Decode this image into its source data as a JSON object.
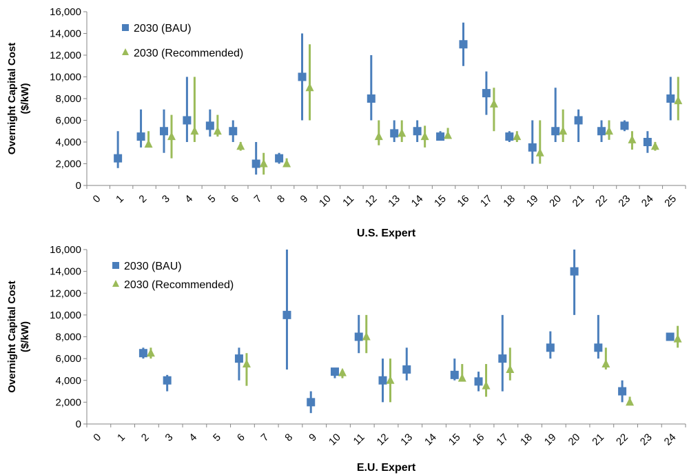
{
  "colors": {
    "bau": "#4a7ebb",
    "rec": "#9bbb59",
    "axis": "#868686"
  },
  "chart_data": [
    {
      "type": "scatter",
      "xlabel": "U.S. Expert",
      "ylabel_line1": "Overnight Capital Cost",
      "ylabel_line2": "($/kW)",
      "ylim": [
        0,
        16000
      ],
      "yticks": [
        "0",
        "2,000",
        "4,000",
        "6,000",
        "8,000",
        "10,000",
        "12,000",
        "14,000",
        "16,000"
      ],
      "xticks": [
        "0",
        "1",
        "2",
        "3",
        "4",
        "5",
        "6",
        "7",
        "8",
        "9",
        "10",
        "11",
        "12",
        "13",
        "14",
        "15",
        "16",
        "17",
        "18",
        "19",
        "20",
        "21",
        "22",
        "23",
        "24",
        "25"
      ],
      "legend": [
        "2030 (BAU)",
        "2030 (Recommended)"
      ],
      "series": [
        {
          "name": "2030 (BAU)",
          "marker": "square",
          "points": [
            {
              "x": 1,
              "y": 2500,
              "low": 1600,
              "high": 5000
            },
            {
              "x": 2,
              "y": 4500,
              "low": 3500,
              "high": 7000
            },
            {
              "x": 3,
              "y": 5000,
              "low": 3000,
              "high": 7000
            },
            {
              "x": 4,
              "y": 6000,
              "low": 4000,
              "high": 10000
            },
            {
              "x": 5,
              "y": 5500,
              "low": 4500,
              "high": 7000
            },
            {
              "x": 6,
              "y": 5000,
              "low": 4000,
              "high": 6000
            },
            {
              "x": 7,
              "y": 2000,
              "low": 1000,
              "high": 4000
            },
            {
              "x": 8,
              "y": 2500,
              "low": 2000,
              "high": 3000
            },
            {
              "x": 9,
              "y": 10000,
              "low": 6000,
              "high": 14000
            },
            {
              "x": 12,
              "y": 8000,
              "low": 6000,
              "high": 12000
            },
            {
              "x": 13,
              "y": 4800,
              "low": 4000,
              "high": 6000
            },
            {
              "x": 14,
              "y": 5000,
              "low": 4000,
              "high": 6000
            },
            {
              "x": 15,
              "y": 4500,
              "low": 4200,
              "high": 5000
            },
            {
              "x": 16,
              "y": 13000,
              "low": 11000,
              "high": 15000
            },
            {
              "x": 17,
              "y": 8500,
              "low": 6500,
              "high": 10500
            },
            {
              "x": 18,
              "y": 4500,
              "low": 4000,
              "high": 5000
            },
            {
              "x": 19,
              "y": 3500,
              "low": 2000,
              "high": 6000
            },
            {
              "x": 20,
              "y": 5000,
              "low": 4000,
              "high": 9000
            },
            {
              "x": 21,
              "y": 6000,
              "low": 4000,
              "high": 7000
            },
            {
              "x": 22,
              "y": 5000,
              "low": 4000,
              "high": 6000
            },
            {
              "x": 23,
              "y": 5500,
              "low": 5000,
              "high": 6000
            },
            {
              "x": 24,
              "y": 4000,
              "low": 3000,
              "high": 5000
            },
            {
              "x": 25,
              "y": 8000,
              "low": 6000,
              "high": 10000
            }
          ]
        },
        {
          "name": "2030 (Recommended)",
          "marker": "triangle",
          "points": [
            {
              "x": 2,
              "y": 3800,
              "low": 3800,
              "high": 5000
            },
            {
              "x": 3,
              "y": 4500,
              "low": 2500,
              "high": 6500
            },
            {
              "x": 4,
              "y": 5000,
              "low": 4000,
              "high": 10000
            },
            {
              "x": 5,
              "y": 5000,
              "low": 4500,
              "high": 6500
            },
            {
              "x": 6,
              "y": 3600,
              "low": 3200,
              "high": 4000
            },
            {
              "x": 7,
              "y": 2000,
              "low": 1000,
              "high": 3000
            },
            {
              "x": 8,
              "y": 2000,
              "low": 1800,
              "high": 2500
            },
            {
              "x": 9,
              "y": 9000,
              "low": 6000,
              "high": 13000
            },
            {
              "x": 12,
              "y": 4500,
              "low": 3700,
              "high": 6000
            },
            {
              "x": 13,
              "y": 4800,
              "low": 4000,
              "high": 6000
            },
            {
              "x": 14,
              "y": 4500,
              "low": 3500,
              "high": 5500
            },
            {
              "x": 15,
              "y": 4600,
              "low": 4300,
              "high": 5300
            },
            {
              "x": 17,
              "y": 7500,
              "low": 5000,
              "high": 9000
            },
            {
              "x": 18,
              "y": 4500,
              "low": 4000,
              "high": 5000
            },
            {
              "x": 19,
              "y": 3000,
              "low": 2000,
              "high": 6000
            },
            {
              "x": 20,
              "y": 5000,
              "low": 4000,
              "high": 7000
            },
            {
              "x": 22,
              "y": 5000,
              "low": 4200,
              "high": 6000
            },
            {
              "x": 23,
              "y": 4200,
              "low": 3300,
              "high": 5000
            },
            {
              "x": 24,
              "y": 3600,
              "low": 3200,
              "high": 4000
            },
            {
              "x": 25,
              "y": 7800,
              "low": 6000,
              "high": 10000
            }
          ]
        }
      ]
    },
    {
      "type": "scatter",
      "xlabel": "E.U. Expert",
      "ylabel_line1": "Overnight Capital Cost",
      "ylabel_line2": "($/kW)",
      "ylim": [
        0,
        16000
      ],
      "yticks": [
        "0",
        "2,000",
        "4,000",
        "6,000",
        "8,000",
        "10,000",
        "12,000",
        "14,000",
        "16,000"
      ],
      "xticks": [
        "0",
        "1",
        "2",
        "3",
        "4",
        "5",
        "6",
        "7",
        "8",
        "9",
        "10",
        "11",
        "12",
        "13",
        "14",
        "15",
        "16",
        "17",
        "18",
        "19",
        "20",
        "21",
        "22",
        "23",
        "24"
      ],
      "legend": [
        "2030 (BAU)",
        "2030 (Recommended)"
      ],
      "series": [
        {
          "name": "2030 (BAU)",
          "marker": "square",
          "points": [
            {
              "x": 2,
              "y": 6500,
              "low": 6000,
              "high": 7000
            },
            {
              "x": 3,
              "y": 4000,
              "low": 3000,
              "high": 4500
            },
            {
              "x": 6,
              "y": 6000,
              "low": 4000,
              "high": 7000
            },
            {
              "x": 8,
              "y": 10000,
              "low": 5000,
              "high": 16000
            },
            {
              "x": 9,
              "y": 2000,
              "low": 1000,
              "high": 3000
            },
            {
              "x": 10,
              "y": 4800,
              "low": 4200,
              "high": 5000
            },
            {
              "x": 11,
              "y": 8000,
              "low": 6500,
              "high": 10000
            },
            {
              "x": 12,
              "y": 4000,
              "low": 2000,
              "high": 6000
            },
            {
              "x": 13,
              "y": 5000,
              "low": 4000,
              "high": 7000
            },
            {
              "x": 15,
              "y": 4500,
              "low": 4000,
              "high": 6000
            },
            {
              "x": 16,
              "y": 3900,
              "low": 3000,
              "high": 4800
            },
            {
              "x": 17,
              "y": 6000,
              "low": 3000,
              "high": 10000
            },
            {
              "x": 19,
              "y": 7000,
              "low": 6000,
              "high": 8500
            },
            {
              "x": 20,
              "y": 14000,
              "low": 10000,
              "high": 16000
            },
            {
              "x": 21,
              "y": 7000,
              "low": 6000,
              "high": 10000
            },
            {
              "x": 22,
              "y": 3000,
              "low": 2000,
              "high": 4000
            },
            {
              "x": 24,
              "y": 8000,
              "low": 7800,
              "high": 8200
            }
          ]
        },
        {
          "name": "2030 (Recommended)",
          "marker": "triangle",
          "points": [
            {
              "x": 2,
              "y": 6500,
              "low": 6000,
              "high": 7000
            },
            {
              "x": 6,
              "y": 5500,
              "low": 3500,
              "high": 6500
            },
            {
              "x": 10,
              "y": 4700,
              "low": 4200,
              "high": 5000
            },
            {
              "x": 11,
              "y": 8000,
              "low": 6500,
              "high": 10000
            },
            {
              "x": 12,
              "y": 4000,
              "low": 2000,
              "high": 6000
            },
            {
              "x": 15,
              "y": 4200,
              "low": 4000,
              "high": 5500
            },
            {
              "x": 16,
              "y": 3500,
              "low": 2500,
              "high": 5500
            },
            {
              "x": 17,
              "y": 5000,
              "low": 4000,
              "high": 7000
            },
            {
              "x": 21,
              "y": 5500,
              "low": 5000,
              "high": 7000
            },
            {
              "x": 22,
              "y": 2000,
              "low": 1800,
              "high": 2500
            },
            {
              "x": 24,
              "y": 7800,
              "low": 7000,
              "high": 9000
            }
          ]
        }
      ]
    }
  ]
}
